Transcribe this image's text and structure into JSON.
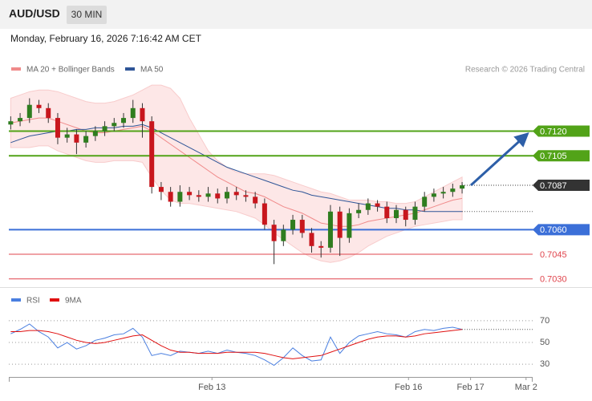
{
  "header": {
    "symbol": "AUD/USD",
    "timeframe": "30 MIN",
    "datetime": "Monday, February 16, 2026 7:16:42 AM CET"
  },
  "credit": "Research © 2026 Trading Central",
  "chart_data": [
    {
      "type": "candlestick",
      "legend": [
        {
          "name": "MA 20 + Bollinger Bands",
          "color": "#f08a8a"
        },
        {
          "name": "MA 50",
          "color": "#2f5597"
        }
      ],
      "up_color": "#2f7d1f",
      "down_color": "#c8161d",
      "open": [
        0.7124,
        0.7126,
        0.7128,
        0.7136,
        0.7134,
        0.7128,
        0.7116,
        0.7118,
        0.7113,
        0.7117,
        0.712,
        0.7123,
        0.7125,
        0.7128,
        0.7134,
        0.7126,
        0.7086,
        0.7083,
        0.7077,
        0.7083,
        0.7081,
        0.708,
        0.7082,
        0.7079,
        0.7083,
        0.7081,
        0.708,
        0.7076,
        0.7063,
        0.7053,
        0.706,
        0.7066,
        0.7058,
        0.705,
        0.7049,
        0.7071,
        0.7055,
        0.707,
        0.7072,
        0.7076,
        0.7074,
        0.7067,
        0.7072,
        0.7066,
        0.7074,
        0.708,
        0.7082,
        0.7083,
        0.7085
      ],
      "high": [
        0.7129,
        0.7131,
        0.714,
        0.7139,
        0.7137,
        0.7131,
        0.7122,
        0.7121,
        0.712,
        0.7123,
        0.7126,
        0.7128,
        0.7131,
        0.7139,
        0.7137,
        0.7129,
        0.7089,
        0.7086,
        0.7087,
        0.7086,
        0.7084,
        0.7086,
        0.7085,
        0.7086,
        0.7086,
        0.7084,
        0.7083,
        0.7079,
        0.7066,
        0.7063,
        0.7069,
        0.7069,
        0.7061,
        0.7053,
        0.7075,
        0.7074,
        0.7073,
        0.7076,
        0.7079,
        0.7078,
        0.7077,
        0.7075,
        0.7074,
        0.7077,
        0.7083,
        0.7085,
        0.7086,
        0.7088,
        0.7089
      ],
      "low": [
        0.7121,
        0.7123,
        0.7125,
        0.7131,
        0.7125,
        0.7112,
        0.7113,
        0.7106,
        0.711,
        0.7114,
        0.7117,
        0.712,
        0.7122,
        0.7125,
        0.7116,
        0.7082,
        0.7078,
        0.7074,
        0.7074,
        0.7078,
        0.7077,
        0.7077,
        0.7076,
        0.7076,
        0.7078,
        0.7077,
        0.7073,
        0.706,
        0.7039,
        0.705,
        0.7057,
        0.7055,
        0.7046,
        0.7043,
        0.7046,
        0.7044,
        0.7052,
        0.7067,
        0.7069,
        0.7071,
        0.7064,
        0.7064,
        0.7062,
        0.7063,
        0.7071,
        0.7077,
        0.7079,
        0.708,
        0.7082
      ],
      "close": [
        0.7126,
        0.7128,
        0.7136,
        0.7134,
        0.7128,
        0.7116,
        0.7118,
        0.7113,
        0.7117,
        0.712,
        0.7123,
        0.7125,
        0.7128,
        0.7134,
        0.7126,
        0.7086,
        0.7083,
        0.7077,
        0.7083,
        0.7081,
        0.708,
        0.7082,
        0.7079,
        0.7083,
        0.7081,
        0.708,
        0.7076,
        0.7063,
        0.7053,
        0.706,
        0.7066,
        0.7058,
        0.705,
        0.7049,
        0.7071,
        0.7055,
        0.707,
        0.7072,
        0.7076,
        0.7074,
        0.7067,
        0.7072,
        0.7066,
        0.7074,
        0.708,
        0.7082,
        0.7083,
        0.7085,
        0.7087
      ],
      "ma20": [
        0.7125,
        0.7126,
        0.7127,
        0.7128,
        0.7128,
        0.7126,
        0.7124,
        0.7122,
        0.712,
        0.7119,
        0.7119,
        0.712,
        0.7121,
        0.7122,
        0.7123,
        0.712,
        0.7116,
        0.7112,
        0.7108,
        0.7104,
        0.71,
        0.7096,
        0.7092,
        0.7089,
        0.7086,
        0.7083,
        0.7082,
        0.708,
        0.7077,
        0.7074,
        0.7072,
        0.707,
        0.7067,
        0.7064,
        0.7063,
        0.7062,
        0.7062,
        0.7063,
        0.7065,
        0.7066,
        0.7067,
        0.7068,
        0.7069,
        0.707,
        0.7072,
        0.7074,
        0.7076,
        0.7078,
        0.7079
      ],
      "bb_upper": [
        0.714,
        0.7142,
        0.7144,
        0.7145,
        0.7145,
        0.7144,
        0.7142,
        0.714,
        0.7138,
        0.7137,
        0.7137,
        0.7138,
        0.714,
        0.7142,
        0.7145,
        0.7148,
        0.7148,
        0.7146,
        0.714,
        0.7128,
        0.7118,
        0.7108,
        0.7102,
        0.7098,
        0.7095,
        0.7094,
        0.7094,
        0.7094,
        0.7093,
        0.7091,
        0.7089,
        0.7087,
        0.7085,
        0.7083,
        0.7082,
        0.708,
        0.7078,
        0.7078,
        0.7078,
        0.7077,
        0.7077,
        0.7076,
        0.7076,
        0.7077,
        0.708,
        0.7083,
        0.7086,
        0.7089,
        0.7092
      ],
      "bb_lower": [
        0.711,
        0.711,
        0.711,
        0.7111,
        0.7111,
        0.7108,
        0.7106,
        0.7104,
        0.7102,
        0.7101,
        0.7101,
        0.7102,
        0.7102,
        0.7102,
        0.7101,
        0.7092,
        0.7084,
        0.7078,
        0.7076,
        0.7076,
        0.7075,
        0.7074,
        0.7073,
        0.7072,
        0.7071,
        0.7069,
        0.7067,
        0.7063,
        0.7058,
        0.7054,
        0.705,
        0.7046,
        0.7043,
        0.7041,
        0.704,
        0.7041,
        0.7043,
        0.7046,
        0.705,
        0.7053,
        0.7056,
        0.7058,
        0.706,
        0.7062,
        0.7063,
        0.7064,
        0.7065,
        0.7066,
        0.7066
      ],
      "ma50": [
        0.7113,
        0.7115,
        0.7117,
        0.7118,
        0.7119,
        0.712,
        0.712,
        0.7121,
        0.7121,
        0.7122,
        0.7122,
        0.7122,
        0.7123,
        0.7123,
        0.7124,
        0.7122,
        0.7119,
        0.7116,
        0.7113,
        0.711,
        0.7107,
        0.7104,
        0.7101,
        0.7098,
        0.7096,
        0.7094,
        0.7092,
        0.709,
        0.7088,
        0.7086,
        0.7084,
        0.7083,
        0.7081,
        0.708,
        0.7079,
        0.7078,
        0.7077,
        0.7076,
        0.7075,
        0.7074,
        0.7073,
        0.7073,
        0.7072,
        0.7072,
        0.7071,
        0.7071,
        0.7071,
        0.7071,
        0.7071
      ],
      "levels": [
        {
          "value": 0.712,
          "label": "0.7120",
          "color": "#52a318",
          "box": true,
          "dash": false
        },
        {
          "value": 0.7105,
          "label": "0.7105",
          "color": "#52a318",
          "box": true,
          "dash": false
        },
        {
          "value": 0.7087,
          "label": "0.7087",
          "color": "#333333",
          "box": true,
          "dash": true
        },
        {
          "value": 0.706,
          "label": "0.7060",
          "color": "#3b6fd8",
          "box": true,
          "dash": false
        },
        {
          "value": 0.7045,
          "label": "0.7045",
          "color": "#e0444c",
          "box": false,
          "dash": false
        },
        {
          "value": 0.703,
          "label": "0.7030",
          "color": "#e0444c",
          "box": false,
          "dash": false
        }
      ],
      "xlim": [
        -0.2,
        55.5
      ],
      "ylim": [
        0.7025,
        0.7151
      ]
    },
    {
      "type": "line",
      "series": [
        {
          "name": "RSI",
          "color": "#4a7fe0",
          "values": [
            58,
            62,
            67,
            60,
            55,
            45,
            50,
            44,
            47,
            52,
            54,
            57,
            58,
            63,
            55,
            38,
            40,
            38,
            42,
            41,
            40,
            42,
            40,
            43,
            41,
            40,
            38,
            34,
            29,
            36,
            45,
            38,
            33,
            34,
            55,
            40,
            50,
            56,
            58,
            60,
            58,
            57,
            55,
            60,
            62,
            61,
            63,
            64,
            62
          ]
        },
        {
          "name": "9MA",
          "color": "#e01010",
          "values": [
            60,
            60,
            61,
            61,
            60,
            58,
            55,
            52,
            50,
            49,
            50,
            52,
            54,
            56,
            57,
            52,
            47,
            43,
            41,
            41,
            40,
            40,
            40,
            41,
            41,
            41,
            41,
            40,
            38,
            36,
            35,
            36,
            37,
            38,
            41,
            44,
            47,
            50,
            53,
            55,
            56,
            56,
            55,
            56,
            58,
            59,
            60,
            61,
            62
          ]
        }
      ],
      "xlim": [
        -0.2,
        55.5
      ],
      "xticks": [
        {
          "value": 21.4,
          "label": "Feb 13"
        },
        {
          "value": 42.3,
          "label": "Feb 16"
        },
        {
          "value": 48.9,
          "label": "Feb 17"
        },
        {
          "value": 54.8,
          "label": "Mar 2"
        }
      ],
      "ylim": [
        22,
        81
      ],
      "yticks": [
        30,
        50,
        70
      ],
      "grid": true
    }
  ]
}
